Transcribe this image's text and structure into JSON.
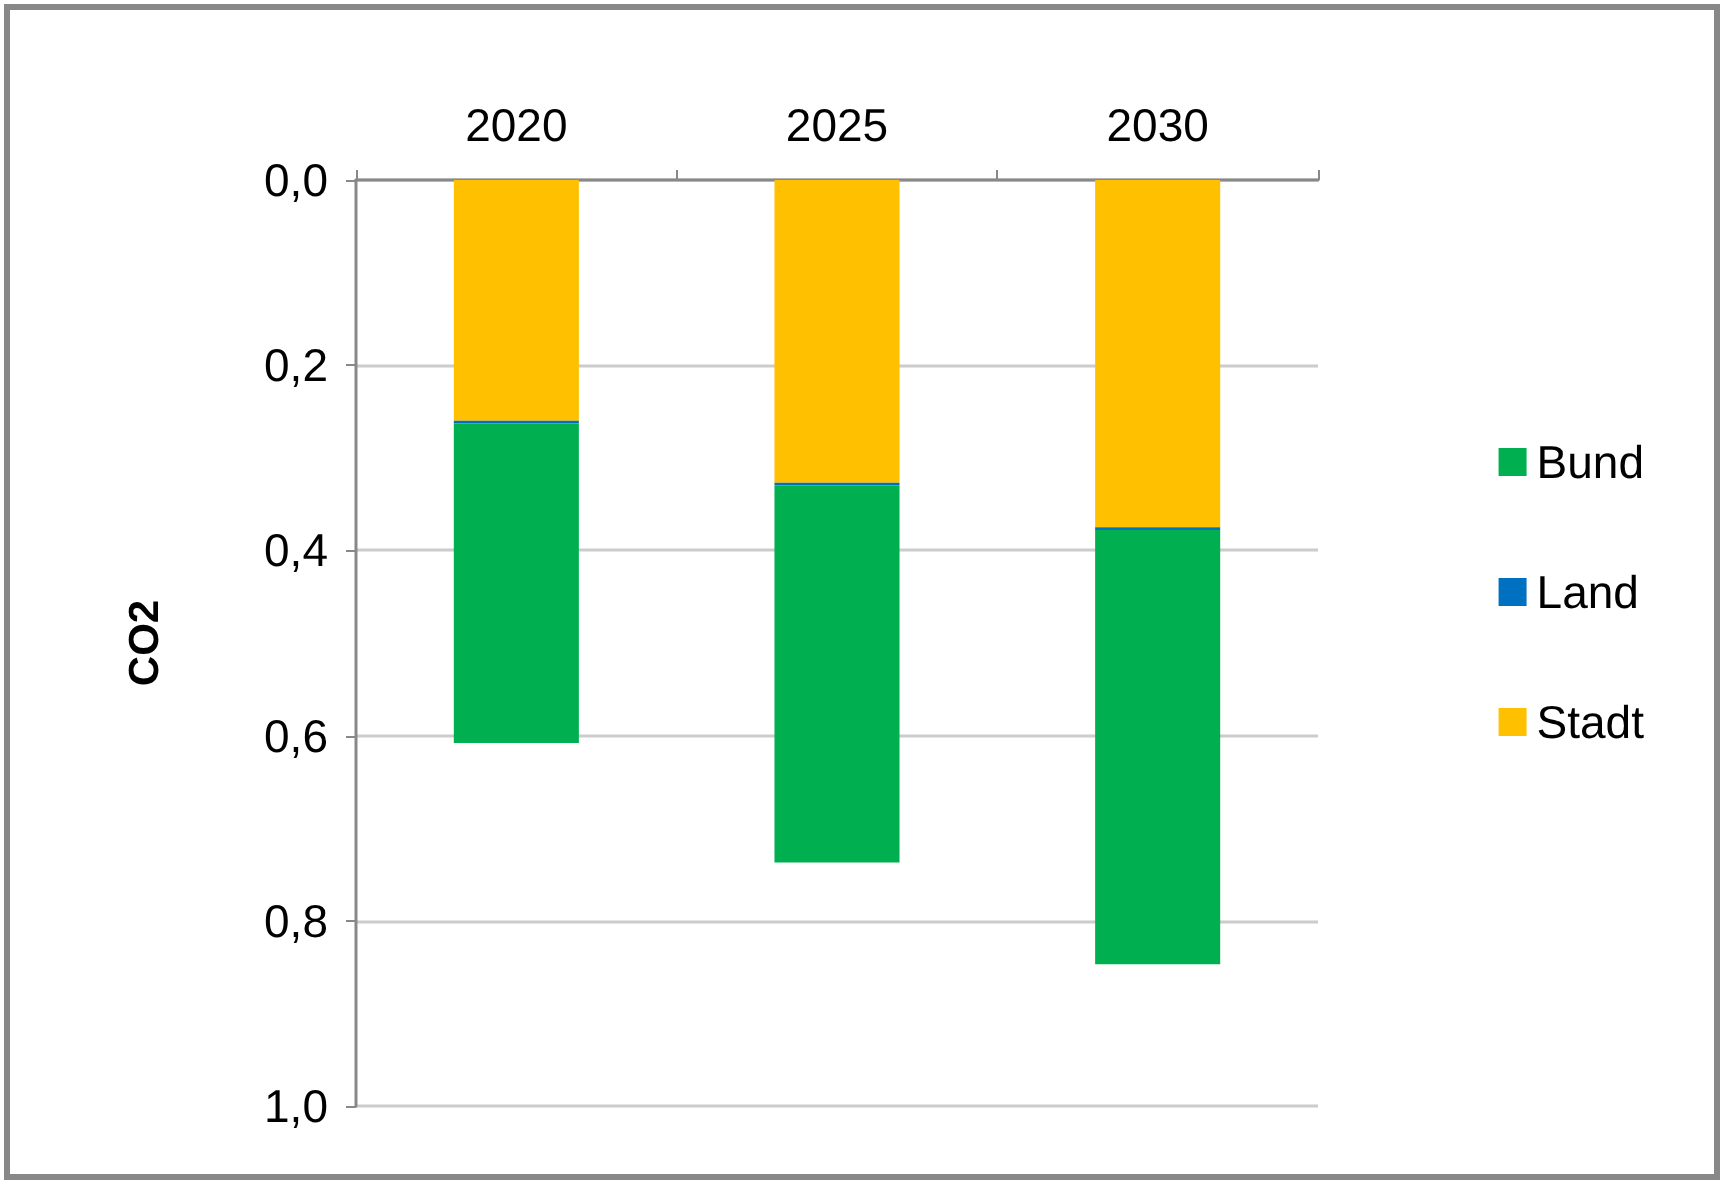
{
  "chart_data": {
    "type": "bar",
    "stacked": true,
    "ylabel": "CO2",
    "categories": [
      "2020",
      "2025",
      "2030"
    ],
    "series": [
      {
        "name": "Stadt",
        "color": "#ffc000",
        "values": [
          0.26,
          0.327,
          0.375
        ]
      },
      {
        "name": "Land",
        "color": "#0070c0",
        "values": [
          0.003,
          0.003,
          0.003
        ]
      },
      {
        "name": "Bund",
        "color": "#00b050",
        "values": [
          0.345,
          0.407,
          0.469
        ]
      }
    ],
    "ylim": [
      1.0,
      0.0
    ],
    "yticks": [
      {
        "value": 0,
        "label": "0,0"
      },
      {
        "value": 0.2,
        "label": "0,2"
      },
      {
        "value": 0.4,
        "label": "0,4"
      },
      {
        "value": 0.6,
        "label": "0,6"
      },
      {
        "value": 0.8,
        "label": "0,8"
      },
      {
        "value": 1.0,
        "label": "1,0"
      }
    ],
    "grid": "y",
    "legend": "right"
  }
}
